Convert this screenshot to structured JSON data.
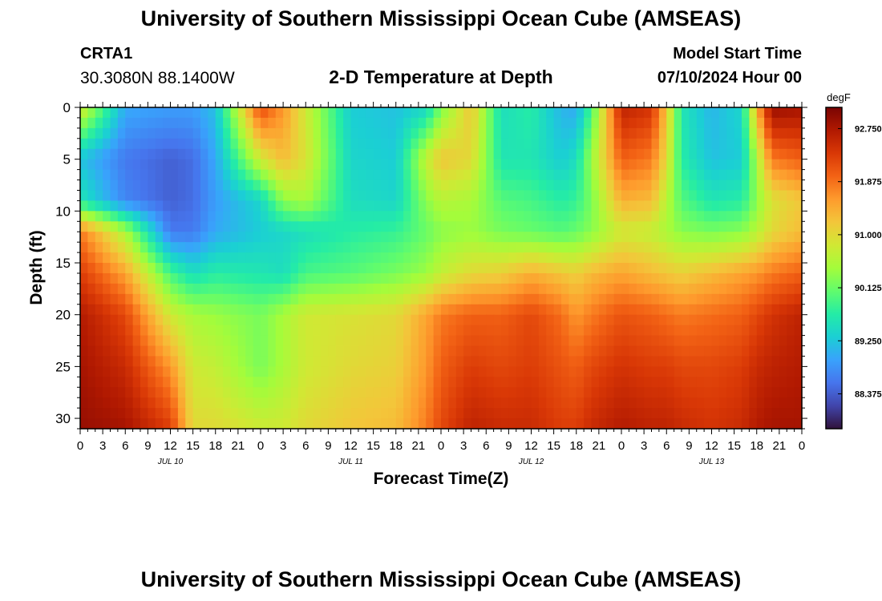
{
  "header": {
    "title": "University of Southern Mississippi Ocean Cube (AMSEAS)",
    "station": "CRTA1",
    "coordinates": "30.3080N  88.1400W",
    "subtitle": "2-D Temperature at Depth",
    "start_label": "Model Start Time",
    "start_value": "07/10/2024 Hour 00"
  },
  "footer": {
    "title": "University of Southern Mississippi Ocean Cube (AMSEAS)"
  },
  "chart_data": {
    "type": "heatmap",
    "title": "2-D Temperature at Depth",
    "xlabel": "Forecast Time(Z)",
    "ylabel": "Depth (ft)",
    "x_tick_labels": [
      "0",
      "3",
      "6",
      "9",
      "12",
      "15",
      "18",
      "21",
      "0",
      "3",
      "6",
      "9",
      "12",
      "15",
      "18",
      "21",
      "0",
      "3",
      "6",
      "9",
      "12",
      "15",
      "18",
      "21",
      "0",
      "3",
      "6",
      "9",
      "12",
      "15",
      "18",
      "21",
      "0"
    ],
    "date_labels": [
      {
        "label": "JUL 10",
        "hour": 12
      },
      {
        "label": "JUL 11",
        "hour": 36
      },
      {
        "label": "JUL 12",
        "hour": 60
      },
      {
        "label": "JUL 13",
        "hour": 84
      }
    ],
    "xlim_hours": [
      0,
      96
    ],
    "y_tick_labels": [
      "0",
      "5",
      "10",
      "15",
      "20",
      "25",
      "30"
    ],
    "y_tick_values": [
      0,
      5,
      10,
      15,
      20,
      25,
      30
    ],
    "ylim_ft": [
      0,
      31
    ],
    "colorbar": {
      "unit": "degF",
      "tick_labels": [
        "92.750",
        "91.875",
        "91.000",
        "90.125",
        "89.250",
        "88.375"
      ],
      "tick_values": [
        92.75,
        91.875,
        91.0,
        90.125,
        89.25,
        88.375
      ],
      "range": [
        87.8,
        93.1
      ],
      "colors": [
        "#30123b",
        "#4145ab",
        "#4675ed",
        "#39a2fc",
        "#1bcfd4",
        "#24eca6",
        "#61fc6c",
        "#a4fc3b",
        "#d1e834",
        "#f3c63a",
        "#fe9b2d",
        "#f36315",
        "#d93806",
        "#b11901",
        "#7a0403"
      ]
    },
    "depth_levels_ft": [
      0,
      5,
      9,
      12,
      16,
      20,
      25,
      31
    ],
    "time_hours": [
      0,
      6,
      12,
      15,
      18,
      24,
      27,
      30,
      36,
      42,
      46,
      48,
      52,
      56,
      60,
      64,
      66,
      68,
      72,
      76,
      78,
      80,
      84,
      88,
      90,
      92,
      96
    ],
    "values": [
      [
        88.9,
        88.9,
        89.1,
        89.3,
        91.0,
        89.5,
        91.2,
        89.2,
        88.9,
        89.0,
        88.9,
        89.0,
        88.9,
        91.3,
        88.7,
        88.8
      ],
      [
        88.5,
        88.5,
        88.6,
        88.8,
        89.7,
        89.4,
        90.8,
        89.1,
        88.8,
        88.8,
        88.8,
        88.8,
        88.8,
        89.5,
        88.5,
        88.6
      ],
      [
        88.4,
        88.4,
        88.5,
        88.6,
        89.0,
        89.2,
        89.8,
        89.0,
        88.8,
        88.9,
        88.9,
        88.9,
        89.0,
        89.2,
        88.6,
        89.2
      ],
      [
        89.9,
        90.3,
        90.8,
        91.2,
        91.3,
        91.3,
        91.3,
        91.1,
        90.8,
        90.5,
        90.3,
        90.3,
        90.5,
        91.0,
        91.6,
        92.2
      ],
      [
        92.5,
        92.6,
        92.7,
        92.8,
        92.9,
        92.8,
        92.7,
        92.7,
        92.5,
        92.0,
        91.8,
        91.7,
        91.9,
        92.3,
        92.8,
        93.0
      ]
    ],
    "grid_values": [
      [
        90.9,
        89.0,
        88.9,
        88.9,
        89.2,
        92.2,
        91.6,
        90.8,
        89.3,
        89.2,
        89.4,
        90.2,
        91.2,
        89.5,
        89.7,
        89.1,
        89.0,
        89.9,
        92.6,
        92.4,
        91.2,
        89.6,
        89.1,
        89.4,
        91.4,
        92.9,
        92.8
      ],
      [
        89.2,
        88.6,
        88.4,
        88.5,
        89.0,
        90.8,
        91.3,
        90.9,
        89.4,
        89.3,
        90.7,
        91.2,
        91.0,
        89.6,
        89.6,
        89.3,
        89.5,
        90.4,
        92.0,
        91.8,
        91.0,
        89.7,
        89.2,
        89.3,
        90.5,
        91.8,
        92.0
      ],
      [
        89.6,
        88.7,
        88.4,
        88.5,
        88.9,
        89.4,
        90.3,
        90.5,
        89.5,
        89.4,
        90.3,
        90.6,
        90.5,
        90.0,
        89.9,
        89.7,
        89.8,
        90.2,
        91.4,
        91.3,
        90.6,
        90.0,
        89.6,
        89.7,
        90.3,
        90.9,
        91.2
      ],
      [
        91.8,
        90.5,
        88.6,
        88.6,
        89.0,
        89.3,
        89.4,
        89.5,
        89.7,
        89.8,
        90.1,
        90.3,
        90.4,
        90.2,
        90.1,
        90.0,
        90.1,
        90.3,
        90.8,
        90.7,
        90.5,
        90.3,
        90.2,
        90.3,
        90.6,
        91.0,
        91.3
      ],
      [
        92.3,
        91.5,
        89.9,
        89.5,
        89.7,
        89.6,
        89.5,
        89.9,
        90.0,
        90.2,
        90.4,
        90.7,
        91.0,
        91.1,
        91.4,
        91.2,
        91.1,
        91.3,
        91.5,
        91.3,
        91.2,
        91.1,
        91.3,
        91.5,
        91.6,
        91.8,
        92.0
      ],
      [
        92.7,
        92.2,
        90.8,
        90.5,
        90.4,
        90.2,
        90.5,
        90.8,
        90.9,
        91.0,
        91.5,
        91.8,
        92.0,
        92.0,
        92.2,
        91.9,
        91.6,
        91.8,
        92.1,
        92.0,
        91.9,
        91.8,
        91.9,
        92.0,
        92.2,
        92.4,
        92.6
      ],
      [
        92.8,
        92.5,
        91.6,
        90.8,
        90.7,
        90.2,
        90.5,
        90.8,
        91.0,
        91.1,
        91.6,
        92.0,
        92.3,
        92.2,
        92.3,
        92.1,
        92.0,
        92.2,
        92.4,
        92.3,
        92.3,
        92.2,
        92.2,
        92.3,
        92.5,
        92.6,
        92.7
      ],
      [
        92.9,
        92.8,
        92.3,
        91.0,
        91.0,
        90.8,
        90.8,
        91.0,
        91.2,
        91.3,
        91.8,
        92.2,
        92.6,
        92.5,
        92.5,
        92.3,
        92.3,
        92.5,
        92.7,
        92.6,
        92.6,
        92.5,
        92.4,
        92.5,
        92.7,
        92.8,
        92.8
      ]
    ]
  }
}
